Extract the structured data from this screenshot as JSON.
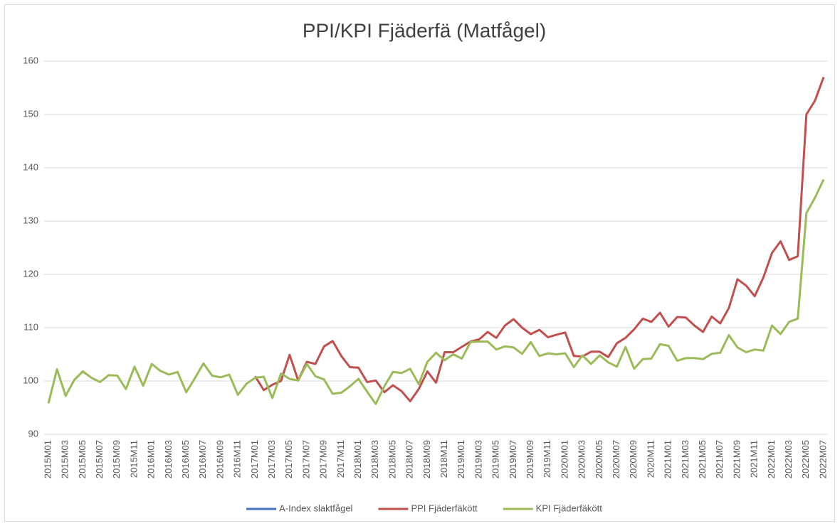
{
  "chart_data": {
    "type": "line",
    "title": "PPI/KPI Fjäderfä (Matfågel)",
    "categories": [
      "2015M01",
      null,
      "2015M03",
      null,
      "2015M05",
      null,
      "2015M07",
      null,
      "2015M09",
      null,
      "2015M11",
      null,
      "2016M01",
      null,
      "2016M03",
      null,
      "2016M05",
      null,
      "2016M07",
      null,
      "2016M09",
      null,
      "2016M11",
      null,
      "2017M01",
      null,
      "2017M03",
      null,
      "2017M05",
      null,
      "2017M07",
      null,
      "2017M09",
      null,
      "2017M11",
      null,
      "2018M01",
      null,
      "2018M03",
      null,
      "2018M05",
      null,
      "2018M07",
      null,
      "2018M09",
      null,
      "2018M11",
      null,
      "2019M01",
      null,
      "2019M03",
      null,
      "2019M05",
      null,
      "2019M07",
      null,
      "2019M09",
      null,
      "2019M11",
      null,
      "2020M01",
      null,
      "2020M03",
      null,
      "2020M05",
      null,
      "2020M07",
      null,
      "2020M09",
      null,
      "2020M11",
      null,
      "2021M01",
      null,
      "2021M03",
      null,
      "2021M05",
      null,
      "2021M07",
      null,
      "2021M09",
      null,
      "2021M11",
      null,
      "2022M01",
      null,
      "2022M03",
      null,
      "2022M05",
      null,
      "2022M07"
    ],
    "series": [
      {
        "name": "A-Index slaktfågel",
        "color": "#4472c4",
        "values": [
          null,
          null,
          null,
          null,
          null,
          null,
          null,
          null,
          null,
          null,
          null,
          null,
          null,
          null,
          null,
          null,
          null,
          null,
          null,
          null,
          null,
          null,
          null,
          null,
          null,
          null,
          null,
          null,
          null,
          null,
          null,
          null,
          null,
          null,
          null,
          null,
          null,
          null,
          null,
          null,
          null,
          null,
          null,
          null,
          null,
          null,
          null,
          null,
          null,
          null,
          null,
          null,
          null,
          null,
          null,
          null,
          null,
          null,
          null,
          null,
          null,
          null,
          null,
          null,
          null,
          null,
          null,
          null,
          null,
          null,
          null,
          null,
          null,
          null,
          null,
          null,
          null,
          null,
          null,
          null,
          null,
          null,
          null,
          null,
          null,
          null,
          null,
          null,
          null,
          null,
          null
        ]
      },
      {
        "name": "PPI Fjäderfäkött",
        "color": "#c0504d",
        "values": [
          null,
          null,
          null,
          null,
          null,
          null,
          null,
          null,
          null,
          null,
          null,
          null,
          null,
          null,
          null,
          null,
          null,
          null,
          null,
          null,
          null,
          null,
          null,
          null,
          100.9,
          98.3,
          99.3,
          100.0,
          104.9,
          100.1,
          103.6,
          103.2,
          106.5,
          107.5,
          104.7,
          102.6,
          102.5,
          99.8,
          100.1,
          97.9,
          99.2,
          98.1,
          96.2,
          98.5,
          101.8,
          99.7,
          105.4,
          105.4,
          106.4,
          107.4,
          107.8,
          109.2,
          108.1,
          110.4,
          111.6,
          110.0,
          108.8,
          109.6,
          108.2,
          108.7,
          109.1,
          104.7,
          104.6,
          105.5,
          105.5,
          104.5,
          107.1,
          108.1,
          109.7,
          111.7,
          111.1,
          112.8,
          110.2,
          112.0,
          111.9,
          110.4,
          109.2,
          112.1,
          110.8,
          113.7,
          119.1,
          117.9,
          115.9,
          119.4,
          124.0,
          126.2,
          122.7,
          123.4,
          150.0,
          152.6,
          157.0
        ]
      },
      {
        "name": "KPI Fjäderfäkött",
        "color": "#9bbb59",
        "values": [
          95.8,
          102.2,
          97.2,
          100.2,
          101.8,
          100.6,
          99.8,
          101.1,
          101.0,
          98.5,
          102.7,
          99.1,
          103.2,
          101.9,
          101.2,
          101.7,
          97.9,
          100.5,
          103.3,
          101.0,
          100.7,
          101.2,
          97.4,
          99.5,
          100.6,
          100.8,
          96.8,
          101.4,
          100.4,
          100.1,
          103.2,
          100.9,
          100.3,
          97.6,
          97.8,
          99.0,
          100.4,
          98.0,
          95.7,
          99.0,
          101.7,
          101.5,
          102.3,
          99.4,
          103.6,
          105.3,
          103.9,
          105.0,
          104.2,
          107.3,
          107.4,
          107.4,
          105.9,
          106.5,
          106.3,
          105.1,
          107.3,
          104.7,
          105.2,
          105.0,
          105.2,
          102.6,
          104.8,
          103.2,
          104.8,
          103.5,
          102.7,
          106.4,
          102.3,
          104.1,
          104.2,
          106.9,
          106.6,
          103.8,
          104.3,
          104.3,
          104.1,
          105.1,
          105.3,
          108.6,
          106.3,
          105.4,
          105.9,
          105.7,
          110.4,
          108.8,
          111.1,
          111.7,
          131.5,
          134.4,
          137.8
        ]
      }
    ],
    "ylim": [
      90,
      160
    ],
    "yticks": [
      90,
      100,
      110,
      120,
      130,
      140,
      150,
      160
    ],
    "grid": true,
    "legend": "bottom"
  }
}
